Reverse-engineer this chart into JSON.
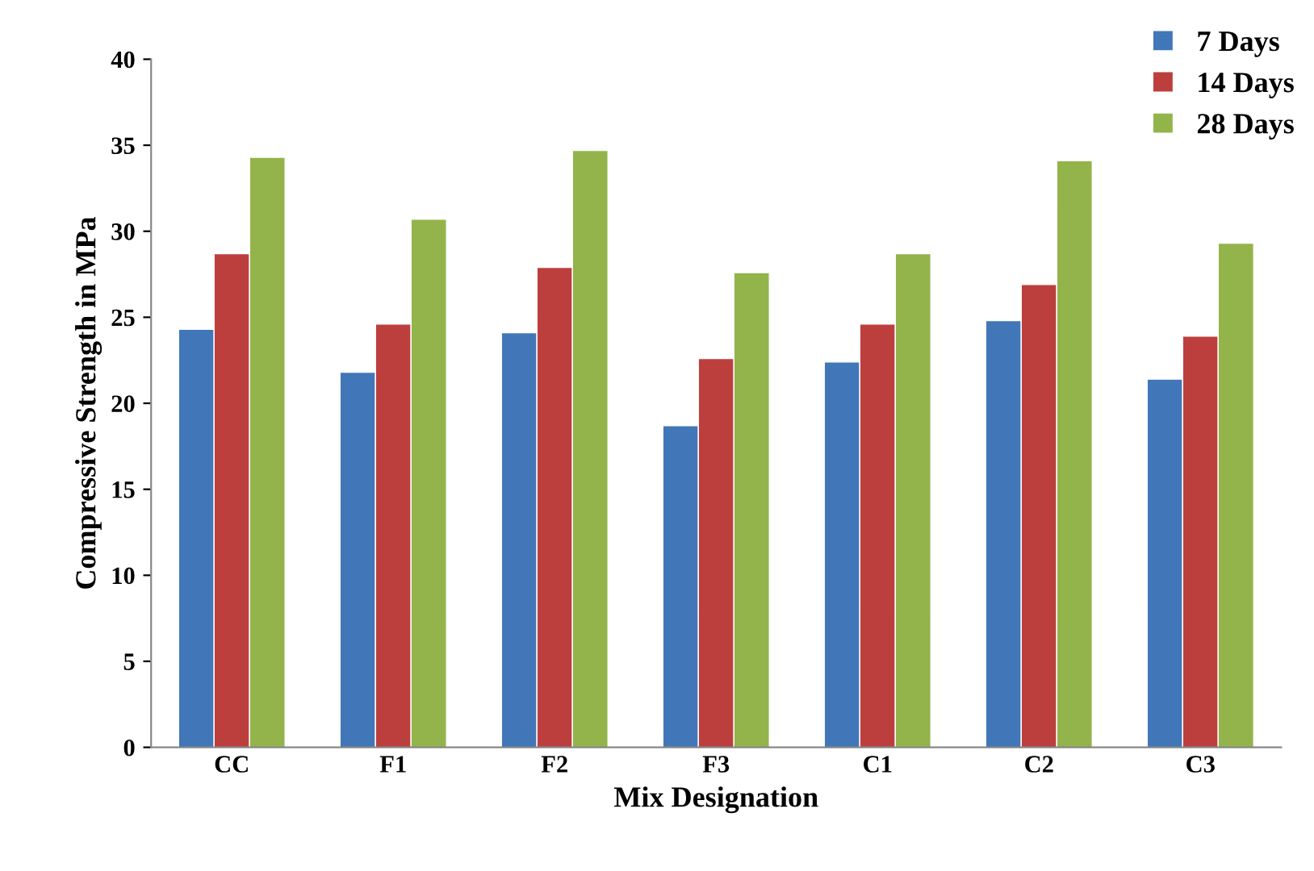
{
  "chart_data": {
    "type": "bar",
    "xlabel": "Mix Designation",
    "ylabel": "Compressive Strength in MPa",
    "categories": [
      "CC",
      "F1",
      "F2",
      "F3",
      "C1",
      "C2",
      "C3"
    ],
    "series": [
      {
        "name": "7 Days",
        "color": "#4177b8",
        "values": [
          24.3,
          21.8,
          24.1,
          18.7,
          22.4,
          24.8,
          21.4
        ]
      },
      {
        "name": "14 Days",
        "color": "#bc3f3e",
        "values": [
          28.7,
          24.6,
          27.9,
          22.6,
          24.6,
          26.9,
          23.9
        ]
      },
      {
        "name": "28 Days",
        "color": "#93b44b",
        "values": [
          34.3,
          30.7,
          34.7,
          27.6,
          28.7,
          34.1,
          29.3
        ]
      }
    ],
    "ylim": [
      0,
      40
    ],
    "yticks": [
      0,
      5,
      10,
      15,
      20,
      25,
      30,
      35,
      40
    ],
    "grid": false,
    "legend": "top right"
  }
}
